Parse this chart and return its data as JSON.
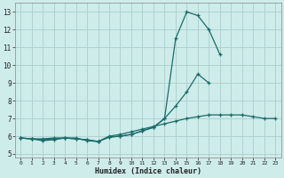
{
  "title": "",
  "xlabel": "Humidex (Indice chaleur)",
  "bg_color": "#ceecea",
  "grid_color": "#aacfcc",
  "line_color": "#1a6b6b",
  "xlim": [
    -0.5,
    23.5
  ],
  "ylim": [
    4.8,
    13.5
  ],
  "yticks": [
    5,
    6,
    7,
    8,
    9,
    10,
    11,
    12,
    13
  ],
  "xticks": [
    0,
    1,
    2,
    3,
    4,
    5,
    6,
    7,
    8,
    9,
    10,
    11,
    12,
    13,
    14,
    15,
    16,
    17,
    18,
    19,
    20,
    21,
    22,
    23
  ],
  "series": [
    {
      "x": [
        0,
        1,
        2,
        3,
        4,
        5,
        6,
        7,
        8,
        9,
        10,
        11,
        12,
        13,
        14,
        15,
        16,
        17,
        18,
        19,
        20,
        21,
        22,
        23
      ],
      "y": [
        5.9,
        5.85,
        5.85,
        5.9,
        5.9,
        5.9,
        5.75,
        5.7,
        6.0,
        6.1,
        6.25,
        6.4,
        6.55,
        6.7,
        6.85,
        7.0,
        7.1,
        7.2,
        7.2,
        7.2,
        7.2,
        7.1,
        7.0,
        7.0
      ]
    },
    {
      "x": [
        0,
        1,
        2,
        3,
        4,
        5,
        6,
        7,
        8,
        9,
        10,
        11,
        12,
        13,
        14,
        15,
        16,
        17,
        18,
        19,
        20,
        21,
        22,
        23
      ],
      "y": [
        5.9,
        5.85,
        5.75,
        5.8,
        5.9,
        5.85,
        5.8,
        5.7,
        5.95,
        6.0,
        6.1,
        6.3,
        6.5,
        7.0,
        7.7,
        8.5,
        9.5,
        9.0,
        null,
        null,
        null,
        null,
        null,
        null
      ]
    },
    {
      "x": [
        0,
        1,
        2,
        3,
        4,
        5,
        6,
        7,
        8,
        9,
        10,
        11,
        12,
        13,
        14,
        15,
        16,
        17,
        18,
        19,
        20,
        21,
        22,
        23
      ],
      "y": [
        5.9,
        5.85,
        5.8,
        5.85,
        5.9,
        5.85,
        5.8,
        5.7,
        5.95,
        6.0,
        6.1,
        6.3,
        6.5,
        7.0,
        11.5,
        13.0,
        12.8,
        12.0,
        10.6,
        null,
        null,
        null,
        null,
        null
      ]
    }
  ]
}
